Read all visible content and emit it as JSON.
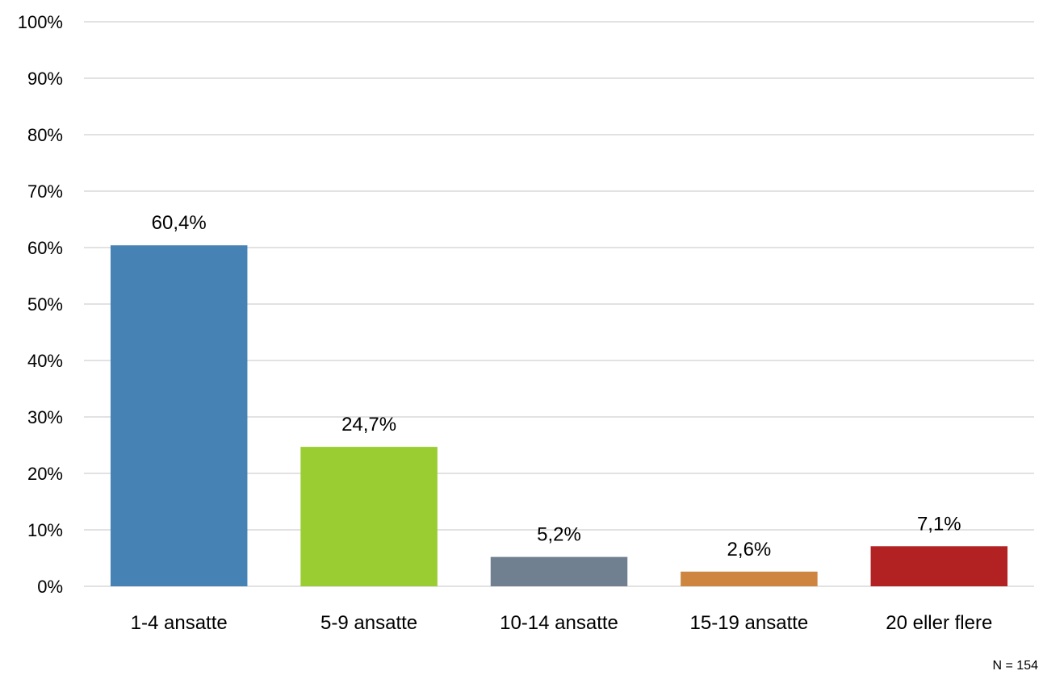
{
  "chart_data": {
    "type": "bar",
    "categories": [
      "1-4 ansatte",
      "5-9 ansatte",
      "10-14 ansatte",
      "15-19 ansatte",
      "20 eller flere"
    ],
    "values": [
      60.4,
      24.7,
      5.2,
      2.6,
      7.1
    ],
    "data_labels": [
      "60,4%",
      "24,7%",
      "5,2%",
      "2,6%",
      "7,1%"
    ],
    "colors": [
      "#4682b4",
      "#9acd32",
      "#708090",
      "#cd853f",
      "#b22222"
    ],
    "ylim": [
      0,
      100
    ],
    "yticks": [
      0,
      10,
      20,
      30,
      40,
      50,
      60,
      70,
      80,
      90,
      100
    ],
    "ytick_labels": [
      "0%",
      "10%",
      "20%",
      "30%",
      "40%",
      "50%",
      "60%",
      "70%",
      "80%",
      "90%",
      "100%"
    ],
    "grid": true,
    "title": "",
    "xlabel": "",
    "ylabel": ""
  },
  "footnote": "N = 154"
}
